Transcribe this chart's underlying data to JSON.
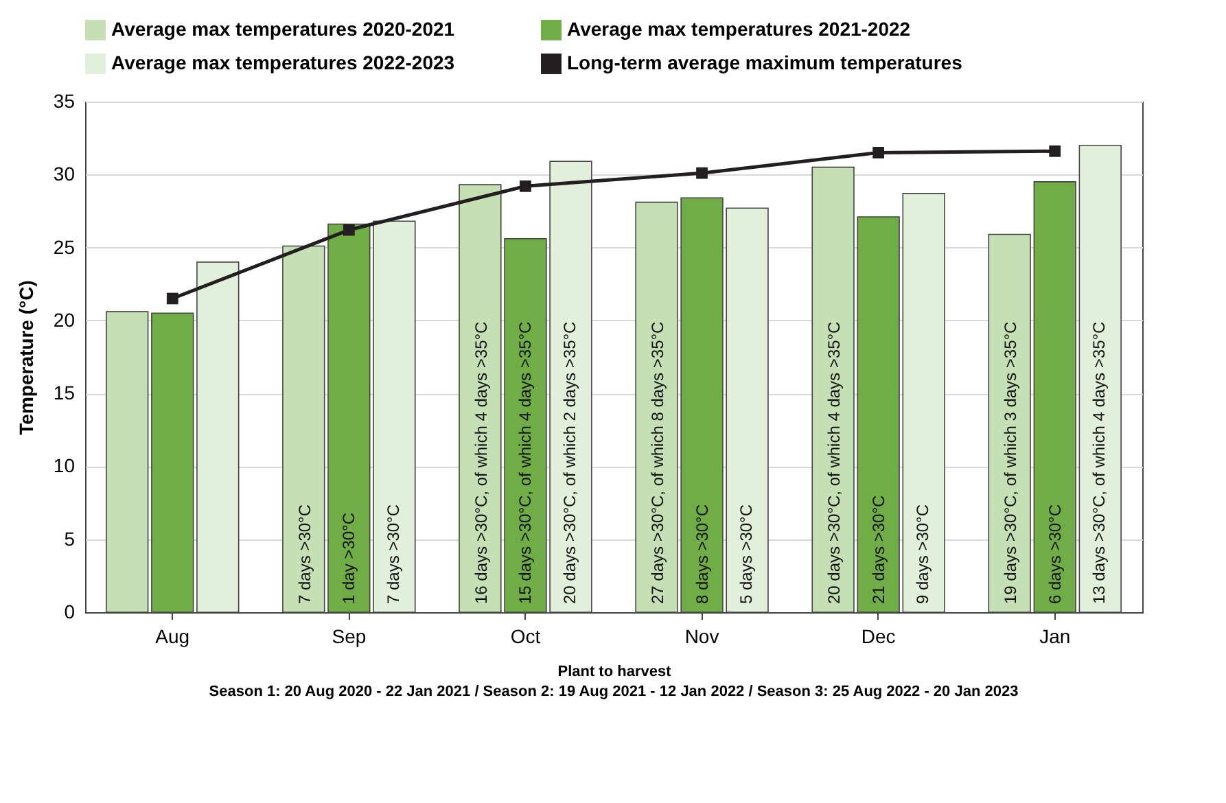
{
  "chart_data": {
    "type": "bar",
    "xlabel": "Plant to harvest",
    "ylabel": "Temperature (°C)",
    "annotations": [
      "Season 1: 20 Aug 2020 - 22 Jan 2021 / Season 2: 19 Aug 2021 - 12 Jan 2022 / Season 3: 25 Aug 2022 - 20 Jan 2023",
      {
        "text": "7 days >30°C",
        "x": "Sep",
        "y": 0
      },
      {
        "text": "1 day >30°C",
        "x": "Sep",
        "y": 0
      },
      {
        "text": "7 days >30°C",
        "x": "Sep",
        "y": 0
      },
      {
        "text": "16 days >30°C, of which 4 days >35°C",
        "x": "Oct",
        "y": 0
      },
      {
        "text": "15 days >30°C, of which 4 days >35°C",
        "x": "Oct",
        "y": 0
      },
      {
        "text": "20 days >30°C, of which 2 days >35°C",
        "x": "Oct",
        "y": 0
      },
      {
        "text": "27 days >30°C, of which 8 days >35°C",
        "x": "Nov",
        "y": 0
      },
      {
        "text": "8 days >30°C",
        "x": "Nov",
        "y": 0
      },
      {
        "text": "5 days >30°C",
        "x": "Nov",
        "y": 0
      },
      {
        "text": "20 days >30°C, of which 4 days >35°C",
        "x": "Dec",
        "y": 0
      },
      {
        "text": "21 days >30°C",
        "x": "Dec",
        "y": 0
      },
      {
        "text": "9 days >30°C",
        "x": "Dec",
        "y": 0
      },
      {
        "text": "19 days >30°C, of which 3 days >35°C",
        "x": "Jan",
        "y": 0
      },
      {
        "text": "6 days >30°C",
        "x": "Jan",
        "y": 0
      },
      {
        "text": "13 days >30°C, of which 4 days >35°C",
        "x": "Jan",
        "y": 0
      }
    ],
    "categories": [
      "Aug",
      "Sep",
      "Oct",
      "Nov",
      "Dec",
      "Jan"
    ],
    "series": [
      {
        "name": "Average max temperatures 2020-2021",
        "color": "#c5e0b4",
        "values": [
          20.6,
          25.1,
          29.3,
          28.1,
          30.5,
          25.9
        ]
      },
      {
        "name": "Average max temperatures 2021-2022",
        "color": "#70ad47",
        "values": [
          20.5,
          26.6,
          25.6,
          28.4,
          27.1,
          29.5
        ]
      },
      {
        "name": "Average max temperatures 2022-2023",
        "color": "#e2efda",
        "values": [
          24.0,
          26.8,
          30.9,
          27.7,
          28.7,
          32.0
        ]
      },
      {
        "name": "Long-term average maximum temperatures",
        "type": "line",
        "color": "#231f20",
        "values": [
          21.5,
          26.2,
          29.2,
          30.1,
          31.5,
          31.6
        ]
      }
    ],
    "ylim": [
      0,
      35
    ],
    "yticks": [
      0,
      5,
      10,
      15,
      20,
      25,
      30,
      35
    ],
    "grid": "y",
    "legend": "top",
    "marker": "square"
  }
}
